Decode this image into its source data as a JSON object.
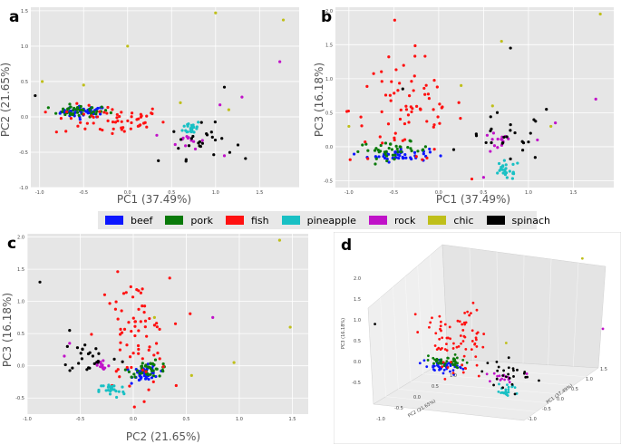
{
  "legend": [
    {
      "name": "beef",
      "color": "#0b16ff"
    },
    {
      "name": "pork",
      "color": "#0a7a0a"
    },
    {
      "name": "fish",
      "color": "#ff1111"
    },
    {
      "name": "pineapple",
      "color": "#19c0c4"
    },
    {
      "name": "rock",
      "color": "#c012c8"
    },
    {
      "name": "chic",
      "color": "#bfbf1a"
    },
    {
      "name": "spinach",
      "color": "#000000"
    }
  ],
  "chart_data": [
    {
      "panel": "a",
      "type": "scatter",
      "xlabel": "PC1 (37.49%)",
      "ylabel": "PC2 (21.65%)",
      "xlim": [
        -1.1,
        1.95
      ],
      "ylim": [
        -1.0,
        1.55
      ],
      "xticks": [
        "-1.0",
        "-0.5",
        "0.0",
        "0.5",
        "1.0",
        "1.5"
      ],
      "xtickvals": [
        -1.0,
        -0.5,
        0.0,
        0.5,
        1.0,
        1.5
      ],
      "yticks": [
        "-1.0",
        "-0.5",
        "0.0",
        "0.5",
        "1.0",
        "1.5"
      ],
      "ytickvals": [
        -1.0,
        -0.5,
        0.0,
        0.5,
        1.0,
        1.5
      ],
      "clusters": {
        "beef": {
          "c": [
            -0.5,
            0.07
          ],
          "s": [
            0.13,
            0.04
          ],
          "n": 45
        },
        "pork": {
          "c": [
            -0.55,
            0.08
          ],
          "s": [
            0.17,
            0.04
          ],
          "n": 40
        },
        "fish": {
          "c": [
            -0.2,
            -0.05
          ],
          "s": [
            0.32,
            0.11
          ],
          "n": 60
        },
        "pineapple": {
          "c": [
            0.73,
            -0.15
          ],
          "s": [
            0.05,
            0.05
          ],
          "n": 26
        },
        "rock": {
          "c": [
            0.68,
            -0.33
          ],
          "s": [
            0.1,
            0.06
          ],
          "n": 12
        },
        "spinach": {
          "c": [
            0.85,
            -0.35
          ],
          "s": [
            0.18,
            0.12
          ],
          "n": 25
        }
      },
      "extra": {
        "chic": [
          [
            1.0,
            1.47
          ],
          [
            1.77,
            1.37
          ],
          [
            0.0,
            1.0
          ],
          [
            -0.97,
            0.5
          ],
          [
            -0.5,
            0.45
          ],
          [
            0.6,
            0.2
          ],
          [
            1.15,
            0.1
          ]
        ],
        "rock": [
          [
            1.73,
            0.78
          ],
          [
            1.05,
            0.17
          ],
          [
            1.3,
            0.28
          ],
          [
            1.1,
            -0.55
          ]
        ],
        "spinach": [
          [
            1.1,
            0.42
          ],
          [
            -1.05,
            0.3
          ],
          [
            0.35,
            -0.62
          ]
        ]
      }
    },
    {
      "panel": "b",
      "type": "scatter",
      "xlabel": "PC1 (37.49%)",
      "ylabel": "PC3 (16.18%)",
      "xlim": [
        -1.15,
        1.95
      ],
      "ylim": [
        -0.6,
        2.05
      ],
      "xticks": [
        "-1.0",
        "-0.5",
        "0.0",
        "0.5",
        "1.0",
        "1.5"
      ],
      "xtickvals": [
        -1.0,
        -0.5,
        0.0,
        0.5,
        1.0,
        1.5
      ],
      "yticks": [
        "-0.5",
        "0.0",
        "0.5",
        "1.0",
        "1.5",
        "2.0"
      ],
      "ytickvals": [
        -0.5,
        0.0,
        0.5,
        1.0,
        1.5,
        2.0
      ],
      "clusters": {
        "beef": {
          "c": [
            -0.45,
            -0.12
          ],
          "s": [
            0.17,
            0.05
          ],
          "n": 45
        },
        "pork": {
          "c": [
            -0.5,
            -0.05
          ],
          "s": [
            0.2,
            0.06
          ],
          "n": 40
        },
        "fish": {
          "c": [
            -0.35,
            0.55
          ],
          "s": [
            0.32,
            0.4
          ],
          "n": 75
        },
        "pineapple": {
          "c": [
            0.75,
            -0.35
          ],
          "s": [
            0.08,
            0.07
          ],
          "n": 24
        },
        "rock": {
          "c": [
            0.65,
            0.05
          ],
          "s": [
            0.08,
            0.08
          ],
          "n": 14
        },
        "spinach": {
          "c": [
            0.75,
            0.12
          ],
          "s": [
            0.22,
            0.18
          ],
          "n": 25
        }
      },
      "extra": {
        "chic": [
          [
            1.8,
            1.95
          ],
          [
            0.7,
            1.55
          ],
          [
            0.25,
            0.9
          ],
          [
            0.6,
            0.6
          ],
          [
            -1.0,
            0.3
          ],
          [
            1.25,
            0.3
          ]
        ],
        "rock": [
          [
            1.75,
            0.7
          ],
          [
            1.3,
            0.35
          ],
          [
            1.1,
            0.1
          ],
          [
            0.5,
            -0.45
          ]
        ],
        "spinach": [
          [
            1.2,
            0.55
          ],
          [
            0.8,
            1.45
          ],
          [
            -0.4,
            0.85
          ]
        ]
      }
    },
    {
      "panel": "c",
      "type": "scatter",
      "xlabel": "PC2 (21.65%)",
      "ylabel": "PC3 (16.18%)",
      "xlim": [
        -1.0,
        1.65
      ],
      "ylim": [
        -0.75,
        2.05
      ],
      "xticks": [
        "-1.0",
        "-0.5",
        "0.0",
        "0.5",
        "1.0",
        "1.5"
      ],
      "xtickvals": [
        -1.0,
        -0.5,
        0.0,
        0.5,
        1.0,
        1.5
      ],
      "yticks": [
        "-0.5",
        "0.0",
        "0.5",
        "1.0",
        "1.5",
        "2.0"
      ],
      "ytickvals": [
        -0.5,
        0.0,
        0.5,
        1.0,
        1.5,
        2.0
      ],
      "clusters": {
        "beef": {
          "c": [
            0.12,
            -0.12
          ],
          "s": [
            0.06,
            0.06
          ],
          "n": 45
        },
        "pork": {
          "c": [
            0.15,
            -0.05
          ],
          "s": [
            0.1,
            0.06
          ],
          "n": 40
        },
        "fish": {
          "c": [
            0.0,
            0.45
          ],
          "s": [
            0.17,
            0.45
          ],
          "n": 75
        },
        "pineapple": {
          "c": [
            -0.2,
            -0.38
          ],
          "s": [
            0.06,
            0.06
          ],
          "n": 26
        },
        "rock": {
          "c": [
            -0.3,
            0.0
          ],
          "s": [
            0.04,
            0.06
          ],
          "n": 14
        },
        "spinach": {
          "c": [
            -0.4,
            0.15
          ],
          "s": [
            0.14,
            0.14
          ],
          "n": 25
        }
      },
      "extra": {
        "chic": [
          [
            1.38,
            1.95
          ],
          [
            1.48,
            0.6
          ],
          [
            0.95,
            0.05
          ],
          [
            0.2,
            0.75
          ],
          [
            0.55,
            -0.15
          ]
        ],
        "rock": [
          [
            0.75,
            0.75
          ],
          [
            -0.6,
            0.35
          ],
          [
            -0.65,
            0.15
          ]
        ],
        "spinach": [
          [
            -0.88,
            1.3
          ],
          [
            -0.6,
            0.55
          ]
        ]
      }
    },
    {
      "panel": "d",
      "type": "scatter",
      "xlabel": "PC2 (21.65%)",
      "ylabel": "PC1 (37.49%)",
      "zlabel": "PC3 (16.18%)",
      "xticks": [
        "-1.0",
        "-0.5",
        "0.0",
        "0.5",
        "1.0"
      ],
      "yticks": [
        "-1.0",
        "-0.5",
        "0.0",
        "0.5",
        "1.0",
        "1.5"
      ],
      "zticks": [
        "-0.5",
        "0.0",
        "0.5",
        "1.0",
        "1.5",
        "2.0"
      ],
      "xlim": [
        -1,
        1
      ],
      "ylim": [
        -1,
        1.5
      ],
      "zlim": [
        -0.5,
        2.0
      ],
      "clusters": {
        "beef": {
          "c": [
            0.1,
            -0.5,
            -0.12
          ],
          "s": [
            0.06,
            0.14,
            0.05
          ],
          "n": 45
        },
        "pork": {
          "c": [
            0.15,
            -0.55,
            -0.05
          ],
          "s": [
            0.09,
            0.17,
            0.06
          ],
          "n": 40
        },
        "fish": {
          "c": [
            0.0,
            -0.3,
            0.55
          ],
          "s": [
            0.17,
            0.3,
            0.4
          ],
          "n": 75
        },
        "pineapple": {
          "c": [
            -0.2,
            0.73,
            -0.35
          ],
          "s": [
            0.06,
            0.06,
            0.07
          ],
          "n": 24
        },
        "rock": {
          "c": [
            -0.3,
            0.68,
            0.02
          ],
          "s": [
            0.04,
            0.1,
            0.06
          ],
          "n": 14
        },
        "spinach": {
          "c": [
            -0.4,
            0.85,
            0.12
          ],
          "s": [
            0.14,
            0.18,
            0.16
          ],
          "n": 25
        }
      },
      "extra": {
        "chic": [
          [
            1.38,
            1.0,
            1.95
          ],
          [
            1.48,
            1.77,
            0.6
          ],
          [
            0.95,
            0.0,
            0.05
          ]
        ],
        "rock": [
          [
            0.75,
            1.73,
            0.75
          ],
          [
            -0.6,
            1.3,
            0.35
          ]
        ],
        "spinach": [
          [
            -0.88,
            -1.05,
            1.3
          ],
          [
            -0.6,
            0.8,
            0.55
          ]
        ]
      }
    }
  ],
  "panels": {
    "a": "a",
    "b": "b",
    "c": "c",
    "d": "d"
  }
}
